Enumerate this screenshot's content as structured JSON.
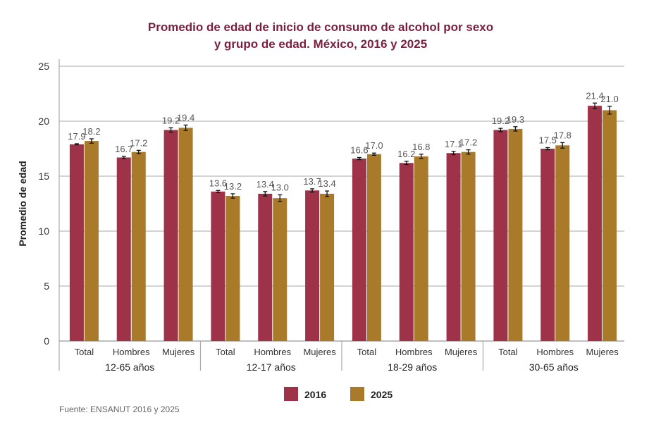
{
  "chart_data": {
    "type": "bar",
    "title_line1": "Promedio de edad de inicio de consumo de alcohol por sexo",
    "title_line2": "y grupo de edad. México, 2016 y 2025",
    "ylabel": "Promedio de edad",
    "xlabel": "",
    "ylim": [
      0,
      25
    ],
    "yticks": [
      0,
      5,
      10,
      15,
      20,
      25
    ],
    "grid": true,
    "legend_position": "bottom",
    "groups": [
      "12-65 años",
      "12-17 años",
      "18-29 años",
      "30-65 años"
    ],
    "subcategories": [
      "Total",
      "Hombres",
      "Mujeres"
    ],
    "series": [
      {
        "name": "2016",
        "color": "#9e3249",
        "values": [
          17.9,
          16.7,
          19.2,
          13.6,
          13.4,
          13.7,
          16.6,
          16.2,
          17.1,
          19.2,
          17.5,
          21.4
        ],
        "labels": [
          "17.9",
          "16.7",
          "19.2",
          "13.6",
          "13.4",
          "13.7",
          "16.6",
          "16.2",
          "17.1",
          "19.2",
          "17.5",
          "21.4"
        ],
        "errors": [
          0.05,
          0.1,
          0.2,
          0.1,
          0.2,
          0.15,
          0.1,
          0.15,
          0.15,
          0.15,
          0.1,
          0.25
        ]
      },
      {
        "name": "2025",
        "color": "#a87a2a",
        "values": [
          18.2,
          17.2,
          19.4,
          13.2,
          13.0,
          13.4,
          17.0,
          16.8,
          17.2,
          19.3,
          17.8,
          21.0
        ],
        "labels": [
          "18.2",
          "17.2",
          "19.4",
          "13.2",
          "13.0",
          "13.4",
          "17.0",
          "16.8",
          "17.2",
          "19.3",
          "17.8",
          "21.0"
        ],
        "errors": [
          0.2,
          0.15,
          0.25,
          0.2,
          0.3,
          0.25,
          0.1,
          0.2,
          0.2,
          0.2,
          0.25,
          0.35
        ]
      }
    ],
    "source": "Fuente: ENSANUT 2016 y 2025"
  }
}
